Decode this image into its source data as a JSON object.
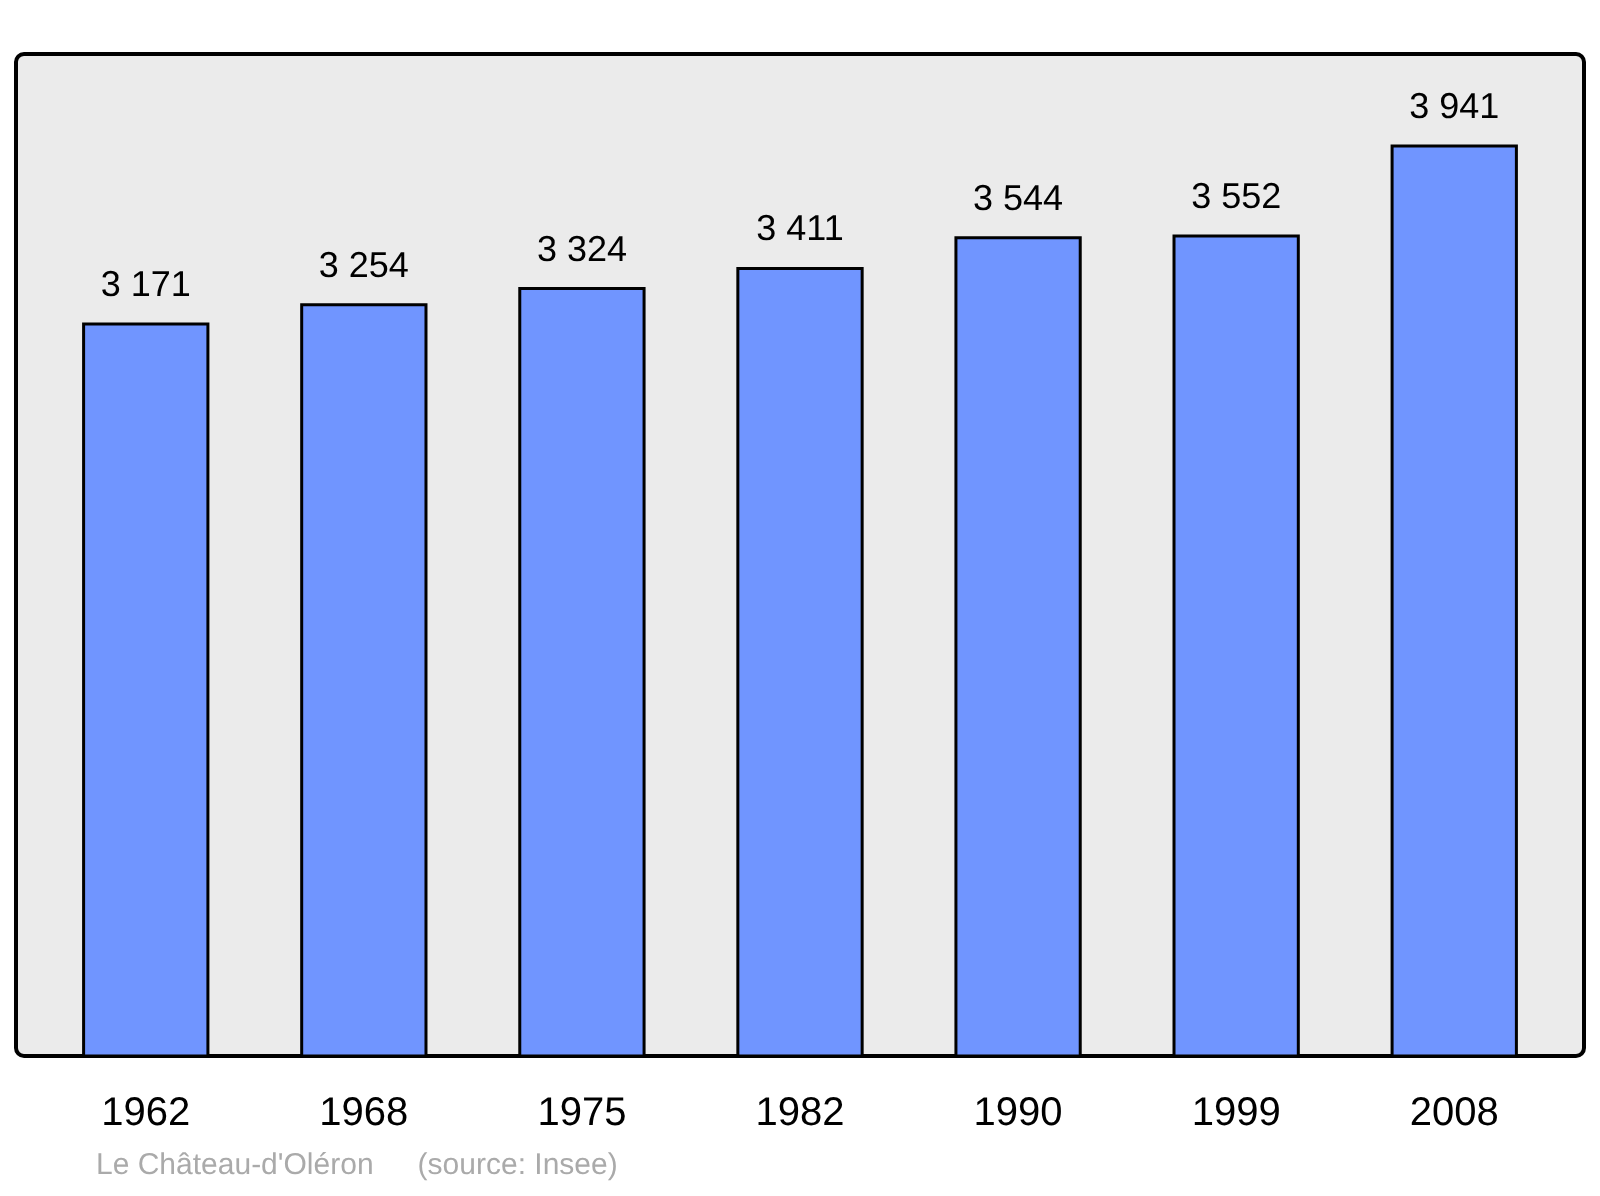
{
  "chart_data": {
    "type": "bar",
    "categories": [
      "1962",
      "1968",
      "1975",
      "1982",
      "1990",
      "1999",
      "2008"
    ],
    "values": [
      3171,
      3254,
      3324,
      3411,
      3544,
      3552,
      3941
    ],
    "color": "#7095ff",
    "ylim": [
      0,
      4340
    ],
    "data_labels": true,
    "annotations": [
      "Le Château-d'Oléron",
      "(source: Insee)"
    ]
  }
}
